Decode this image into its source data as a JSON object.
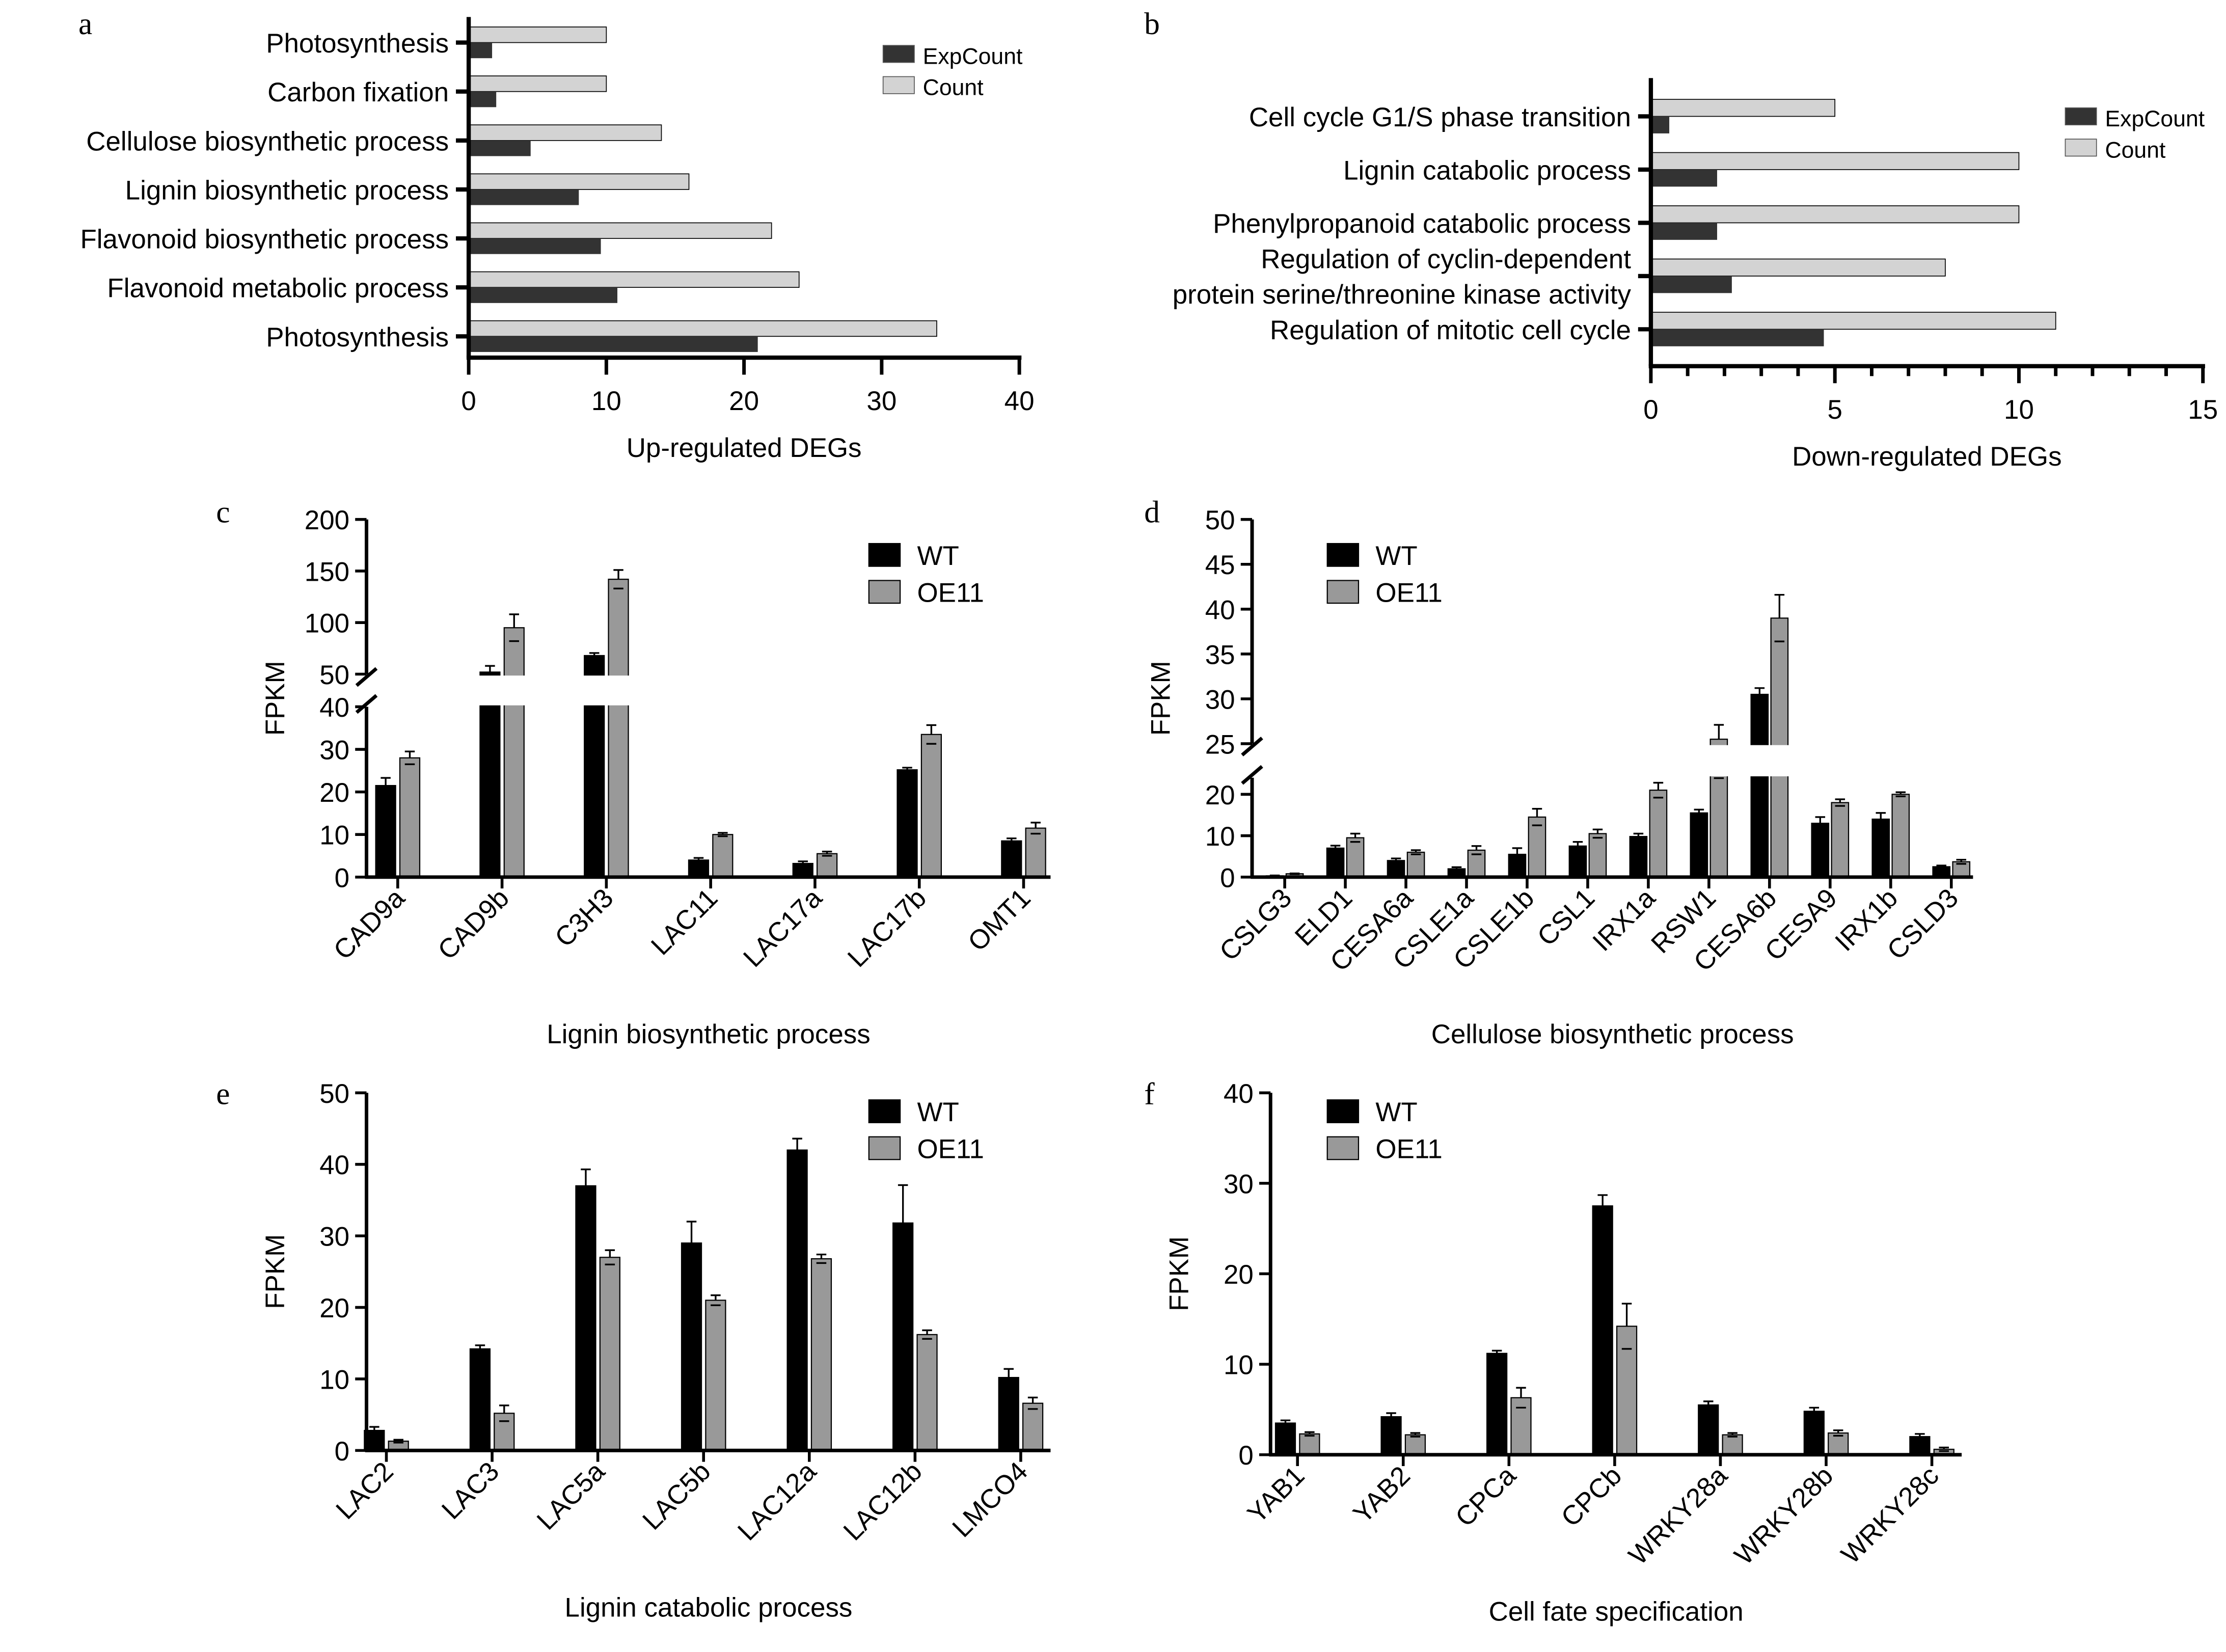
{
  "chart_data": [
    {
      "panel": "a",
      "type": "bar",
      "orientation": "horizontal",
      "categories": [
        "Photosynthesis",
        "Carbon fixation",
        "Cellulose biosynthetic process",
        "Lignin biosynthetic process",
        "Flavonoid biosynthetic process",
        "Flavonoid metabolic process",
        "Photosynthesis"
      ],
      "series": [
        {
          "name": "ExpCount",
          "color": "#333333",
          "values": [
            1.7,
            2.0,
            4.5,
            8.0,
            9.6,
            10.8,
            21.0
          ]
        },
        {
          "name": "Count",
          "color": "#d3d3d3",
          "values": [
            10,
            10,
            14,
            16,
            22,
            24,
            34
          ]
        }
      ],
      "xlabel": "Up-regulated DEGs",
      "xlim": [
        0,
        40
      ],
      "xticks": [
        0,
        10,
        20,
        30,
        40
      ],
      "legend": "top-right"
    },
    {
      "panel": "b",
      "type": "bar",
      "orientation": "horizontal",
      "categories": [
        "Cell cycle G1/S phase transition",
        "Lignin catabolic process",
        "Phenylpropanoid catabolic process",
        "Regulation of cyclin-dependent|protein serine/threonine kinase activity",
        "Regulation of mitotic cell cycle"
      ],
      "series": [
        {
          "name": "ExpCount",
          "color": "#333333",
          "values": [
            0.5,
            1.8,
            1.8,
            2.2,
            4.7
          ]
        },
        {
          "name": "Count",
          "color": "#d3d3d3",
          "values": [
            5,
            10,
            10,
            8,
            11
          ]
        }
      ],
      "xlabel": "Down-regulated DEGs",
      "xlim": [
        0,
        15
      ],
      "xticks": [
        0,
        5,
        10,
        15
      ],
      "legend": "top-right"
    },
    {
      "panel": "c",
      "type": "bar",
      "categories": [
        "CAD9a",
        "CAD9b",
        "C3H3",
        "LAC11",
        "LAC17a",
        "LAC17b",
        "OMT1"
      ],
      "series": [
        {
          "name": "WT",
          "color": "#000000",
          "values": [
            21.5,
            52,
            68,
            4,
            3.2,
            25.2,
            8.5
          ],
          "errors": [
            1.8,
            6,
            2.5,
            0.5,
            0.5,
            0.5,
            0.6
          ]
        },
        {
          "name": "OE11",
          "color": "#999999",
          "values": [
            28,
            95,
            142,
            10,
            5.5,
            33.5,
            11.5
          ],
          "errors": [
            1.5,
            13,
            9,
            0.4,
            0.5,
            2.2,
            1.3
          ]
        }
      ],
      "xlabel": "Lignin biosynthetic process",
      "ylabel": "FPKM",
      "yticks": [
        0,
        10,
        20,
        30,
        40,
        50,
        100,
        150,
        200
      ],
      "ybreak": [
        40,
        50
      ],
      "ylim": [
        0,
        200
      ],
      "legend": "top-right"
    },
    {
      "panel": "d",
      "type": "bar",
      "categories": [
        "CSLG3",
        "ELD1",
        "CESA6a",
        "CSLE1a",
        "CSLE1b",
        "CSL1",
        "IRX1a",
        "RSW1",
        "CESA6b",
        "CESA9",
        "IRX1b",
        "CSLD3"
      ],
      "series": [
        {
          "name": "WT",
          "color": "#000000",
          "values": [
            0.3,
            7,
            4,
            2,
            5.5,
            7.5,
            9.8,
            15.5,
            30.5,
            13,
            14,
            2.5
          ],
          "errors": [
            0.1,
            0.6,
            0.5,
            0.4,
            1.5,
            1,
            0.7,
            0.8,
            0.7,
            1.5,
            1.5,
            0.3
          ]
        },
        {
          "name": "OE11",
          "color": "#999999",
          "values": [
            0.8,
            9.5,
            6,
            6.5,
            14.5,
            10.5,
            21,
            25.5,
            39,
            18,
            20,
            3.7
          ],
          "errors": [
            0.1,
            1,
            0.5,
            1,
            2,
            1,
            1.8,
            1.6,
            2.6,
            0.8,
            0.5,
            0.5
          ]
        }
      ],
      "xlabel": "Cellulose biosynthetic process",
      "ylabel": "FPKM",
      "yticks": [
        0,
        10,
        20,
        25,
        30,
        35,
        40,
        45,
        50
      ],
      "ybreak": [
        24,
        25
      ],
      "ylim": [
        0,
        50
      ],
      "legend": "top-left"
    },
    {
      "panel": "e",
      "type": "bar",
      "categories": [
        "LAC2",
        "LAC3",
        "LAC5a",
        "LAC5b",
        "LAC12a",
        "LAC12b",
        "LMCO4"
      ],
      "series": [
        {
          "name": "WT",
          "color": "#000000",
          "values": [
            2.8,
            14.2,
            37,
            29,
            42,
            31.8,
            10.2
          ],
          "errors": [
            0.5,
            0.5,
            2.3,
            3,
            1.6,
            5.3,
            1.2
          ]
        },
        {
          "name": "OE11",
          "color": "#999999",
          "values": [
            1.3,
            5.2,
            27,
            21,
            26.8,
            16.2,
            6.6
          ],
          "errors": [
            0.2,
            1.1,
            1,
            0.7,
            0.6,
            0.6,
            0.8
          ]
        }
      ],
      "xlabel": "Lignin catabolic process",
      "ylabel": "FPKM",
      "yticks": [
        0,
        10,
        20,
        30,
        40,
        50
      ],
      "ylim": [
        0,
        50
      ],
      "legend": "top-right"
    },
    {
      "panel": "f",
      "type": "bar",
      "categories": [
        "YAB1",
        "YAB2",
        "CPCa",
        "CPCb",
        "WRKY28a",
        "WRKY28b",
        "WRKY28c"
      ],
      "series": [
        {
          "name": "WT",
          "color": "#000000",
          "values": [
            3.5,
            4.2,
            11.2,
            27.5,
            5.5,
            4.8,
            2.0
          ],
          "errors": [
            0.3,
            0.4,
            0.3,
            1.2,
            0.4,
            0.4,
            0.3
          ]
        },
        {
          "name": "OE11",
          "color": "#999999",
          "values": [
            2.3,
            2.2,
            6.3,
            14.2,
            2.2,
            2.4,
            0.6
          ],
          "errors": [
            0.2,
            0.2,
            1.1,
            2.5,
            0.2,
            0.3,
            0.2
          ]
        }
      ],
      "xlabel": "Cell fate specification",
      "ylabel": "FPKM",
      "yticks": [
        0,
        10,
        20,
        30,
        40
      ],
      "ylim": [
        0,
        40
      ],
      "legend": "top-left"
    }
  ]
}
